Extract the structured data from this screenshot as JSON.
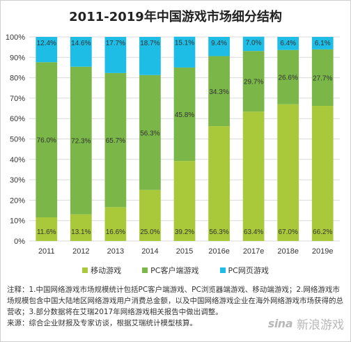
{
  "chart_data": {
    "type": "bar",
    "stacked": true,
    "percent": true,
    "title": "2011-2019年中国游戏市场细分结构",
    "categories": [
      "2011",
      "2012",
      "2013",
      "2014",
      "2015",
      "2016e",
      "2017e",
      "2018e",
      "2019e"
    ],
    "series": [
      {
        "name": "移动游戏",
        "color": "#a9c93a",
        "values": [
          11.6,
          13.1,
          16.6,
          25.0,
          39.2,
          56.3,
          63.4,
          67.0,
          66.2
        ]
      },
      {
        "name": "PC客户端游戏",
        "color": "#7ab648",
        "values": [
          76.0,
          72.3,
          65.7,
          56.3,
          45.8,
          34.3,
          29.7,
          26.6,
          27.7
        ]
      },
      {
        "name": "PC网页游戏",
        "color": "#1dbde6",
        "values": [
          12.4,
          14.6,
          17.7,
          18.7,
          15.1,
          9.4,
          7.0,
          6.4,
          6.1
        ]
      }
    ],
    "value_labels": [
      [
        "11.6%",
        "13.1%",
        "16.6%",
        "25.0%",
        "39.2%",
        "56.3%",
        "63.4%",
        "67.0%",
        "66.2%"
      ],
      [
        "76.0%",
        "72.3%",
        "65.7%",
        "56.3%",
        "45.8%",
        "34.3%",
        "29.7%",
        "26.6%",
        "27.7%"
      ],
      [
        "12.4%",
        "14.6%",
        "17.7%",
        "18.7%",
        "15.1%",
        "9.4%",
        "7.0%",
        "6.4%",
        "6.1%"
      ]
    ],
    "y_ticks": [
      "0%",
      "10%",
      "20%",
      "30%",
      "40%",
      "50%",
      "60%",
      "70%",
      "80%",
      "90%",
      "100%"
    ],
    "ylim": [
      0,
      100
    ],
    "grid": true,
    "legend_position": "bottom"
  },
  "notes": {
    "line1": "注释：1.中国网络游戏市场规模统计包括PC客户端游戏、PC浏览器端游戏、移动端游戏；2.网络游戏市场规模包含中国大陆地区网络游戏用户消费总金额，以及中国网络游戏企业在海外网络游戏市场获得的总营收；3.部分数据将在艾瑞2017年网络游戏相关报告中做出调整。",
    "line2": "来源：综合企业财报及专家访谈，根据艾瑞统计模型核算。"
  },
  "watermark": {
    "brand": "sina",
    "name": "新浪游戏"
  }
}
